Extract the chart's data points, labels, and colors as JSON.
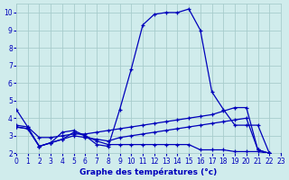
{
  "xlabel": "Graphe des températures (°c)",
  "bg_color": "#d0ecec",
  "grid_color": "#a8cccc",
  "line_color": "#0000bb",
  "xlim": [
    0,
    23
  ],
  "ylim": [
    2,
    10.5
  ],
  "xticks": [
    0,
    1,
    2,
    3,
    4,
    5,
    6,
    7,
    8,
    9,
    10,
    11,
    12,
    13,
    14,
    15,
    16,
    17,
    18,
    19,
    20,
    21,
    22,
    23
  ],
  "yticks": [
    2,
    3,
    4,
    5,
    6,
    7,
    8,
    9,
    10
  ],
  "s1_x": [
    0,
    1,
    2,
    3,
    4,
    5,
    6,
    7,
    8,
    9,
    10,
    11,
    12,
    13,
    14,
    15,
    16,
    17,
    18,
    19,
    20,
    21,
    22,
    23
  ],
  "s1_y": [
    4.5,
    3.5,
    2.4,
    2.6,
    3.2,
    3.3,
    3.0,
    2.5,
    2.4,
    4.5,
    6.8,
    9.3,
    9.9,
    10.0,
    10.0,
    10.2,
    9.0,
    5.5,
    4.5,
    3.6,
    3.6,
    3.6,
    2.0,
    1.9
  ],
  "s2_x": [
    0,
    1,
    2,
    3,
    4,
    5,
    6,
    7,
    8,
    9,
    10,
    11,
    12,
    13,
    14,
    15,
    16,
    17,
    18,
    19,
    20,
    21,
    22,
    23
  ],
  "s2_y": [
    3.6,
    3.5,
    2.9,
    2.9,
    3.0,
    3.1,
    3.1,
    3.2,
    3.3,
    3.4,
    3.5,
    3.6,
    3.7,
    3.8,
    3.9,
    4.0,
    4.1,
    4.2,
    4.4,
    4.6,
    4.6,
    2.2,
    2.0,
    1.9
  ],
  "s3_x": [
    0,
    1,
    2,
    3,
    4,
    5,
    6,
    7,
    8,
    9,
    10,
    11,
    12,
    13,
    14,
    15,
    16,
    17,
    18,
    19,
    20,
    21,
    22,
    23
  ],
  "s3_y": [
    3.5,
    3.4,
    2.4,
    2.6,
    2.8,
    3.2,
    3.0,
    2.7,
    2.5,
    2.5,
    2.5,
    2.5,
    2.5,
    2.5,
    2.5,
    2.5,
    2.2,
    2.2,
    2.2,
    2.1,
    2.1,
    2.1,
    2.0,
    1.9
  ],
  "s4_x": [
    0,
    1,
    2,
    3,
    4,
    5,
    6,
    7,
    8,
    9,
    10,
    11,
    12,
    13,
    14,
    15,
    16,
    17,
    18,
    19,
    20,
    21,
    22,
    23
  ],
  "s4_y": [
    3.5,
    3.4,
    2.4,
    2.6,
    2.8,
    3.0,
    2.9,
    2.8,
    2.7,
    2.9,
    3.0,
    3.1,
    3.2,
    3.3,
    3.4,
    3.5,
    3.6,
    3.7,
    3.8,
    3.9,
    4.0,
    2.2,
    2.0,
    1.9
  ]
}
